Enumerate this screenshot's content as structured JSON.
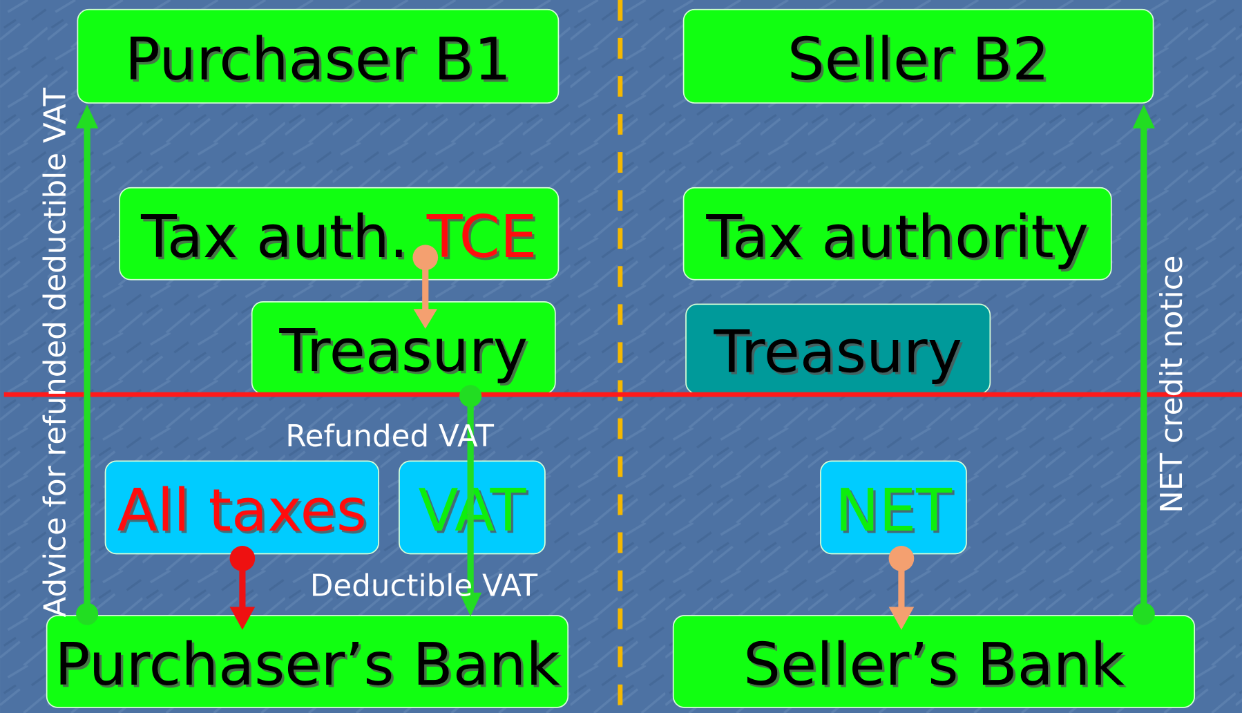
{
  "nodes": [
    {
      "label": "Purchaser B1"
    },
    {
      "label": "Seller B2"
    },
    {
      "label": "Tax auth. ",
      "highlight": "TCE"
    },
    {
      "label": "Tax authority"
    },
    {
      "label": "Treasury"
    },
    {
      "label": "Treasury"
    },
    {
      "label": "All taxes"
    },
    {
      "label": "VAT"
    },
    {
      "label": "NET"
    },
    {
      "label": "Purchaser’s Bank"
    },
    {
      "label": "Seller’s Bank"
    }
  ],
  "edges": [
    {
      "label": "Refunded VAT"
    },
    {
      "label": "Deductible VAT"
    },
    {
      "label": "Advice for refunded deductible VAT"
    },
    {
      "label": "NET credit notice"
    }
  ]
}
